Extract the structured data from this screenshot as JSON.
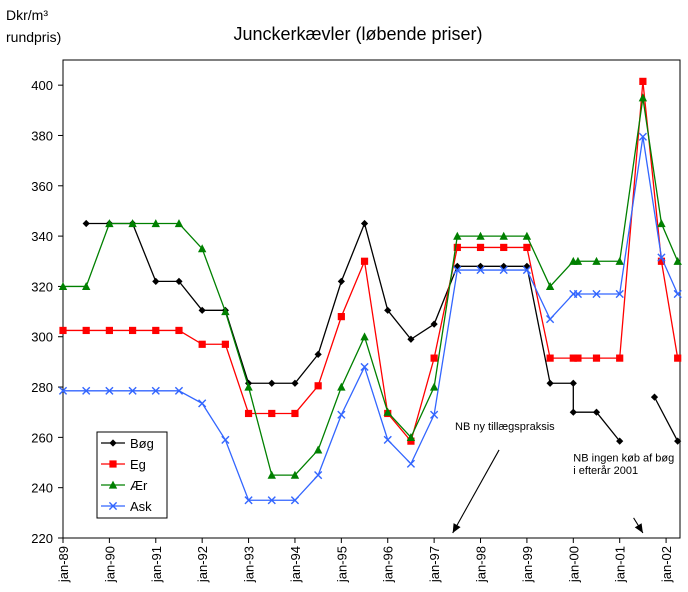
{
  "chart_data": {
    "type": "line",
    "title": "Junckerkævler (løbende priser)",
    "ylabel": [
      "Dkr/m³",
      "rundpris)"
    ],
    "xlabel": "",
    "ylim": [
      220,
      410
    ],
    "yticks": [
      220,
      240,
      260,
      280,
      300,
      320,
      340,
      360,
      380,
      400
    ],
    "x_tick_labels": [
      "jan-89",
      "jan-90",
      "jan-91",
      "jan-92",
      "jan-93",
      "jan-94",
      "jan-95",
      "jan-96",
      "jan-97",
      "jan-98",
      "jan-99",
      "jan-00",
      "jan-01",
      "jan-02"
    ],
    "x_range": [
      1989.0,
      2002.3
    ],
    "legend_position": "bottom-left",
    "grid": false,
    "series": [
      {
        "name": "Bøg",
        "color": "#000000",
        "marker": "diamond",
        "points": [
          [
            1989.5,
            345
          ],
          [
            1990.0,
            345
          ],
          [
            1990.5,
            345
          ],
          [
            1991.0,
            322
          ],
          [
            1991.5,
            322
          ],
          [
            1992.0,
            310.5
          ],
          [
            1992.5,
            310.5
          ],
          [
            1993.0,
            281.5
          ],
          [
            1993.5,
            281.5
          ],
          [
            1994.0,
            281.5
          ],
          [
            1994.5,
            293
          ],
          [
            1995.0,
            322
          ],
          [
            1995.5,
            345
          ],
          [
            1996.0,
            310.5
          ],
          [
            1996.5,
            299
          ],
          [
            1997.0,
            305
          ],
          [
            1997.5,
            328
          ],
          [
            1998.0,
            328
          ],
          [
            1998.5,
            328
          ],
          [
            1999.0,
            328
          ],
          [
            1999.5,
            281.5
          ],
          [
            2000.0,
            281.5
          ],
          [
            2000.0,
            270
          ],
          [
            2000.5,
            270
          ],
          [
            2001.0,
            258.5
          ],
          null,
          [
            2001.75,
            276
          ],
          [
            2002.25,
            258.5
          ]
        ]
      },
      {
        "name": "Eg",
        "color": "#ff0000",
        "marker": "square",
        "points": [
          [
            1989.0,
            302.5
          ],
          [
            1989.5,
            302.5
          ],
          [
            1990.0,
            302.5
          ],
          [
            1990.5,
            302.5
          ],
          [
            1991.0,
            302.5
          ],
          [
            1991.5,
            302.5
          ],
          [
            1992.0,
            297
          ],
          [
            1992.5,
            297
          ],
          [
            1993.0,
            269.5
          ],
          [
            1993.5,
            269.5
          ],
          [
            1994.0,
            269.5
          ],
          [
            1994.5,
            280.5
          ],
          [
            1995.0,
            308
          ],
          [
            1995.5,
            330
          ],
          [
            1996.0,
            269.5
          ],
          [
            1996.5,
            258.5
          ],
          [
            1997.0,
            291.5
          ],
          [
            1997.5,
            335.5
          ],
          [
            1998.0,
            335.5
          ],
          [
            1998.5,
            335.5
          ],
          [
            1999.0,
            335.5
          ],
          [
            1999.5,
            291.5
          ],
          [
            2000.0,
            291.5
          ],
          [
            2000.1,
            291.5
          ],
          [
            2000.5,
            291.5
          ],
          [
            2001.0,
            291.5
          ],
          [
            2001.5,
            401.5
          ],
          [
            2001.9,
            330
          ],
          [
            2002.25,
            291.5
          ]
        ]
      },
      {
        "name": "Ær",
        "color": "#008000",
        "marker": "triangle",
        "points": [
          [
            1989.0,
            320
          ],
          [
            1989.5,
            320
          ],
          [
            1990.0,
            345
          ],
          [
            1990.5,
            345
          ],
          [
            1991.0,
            345
          ],
          [
            1991.5,
            345
          ],
          [
            1992.0,
            335
          ],
          [
            1992.5,
            310
          ],
          [
            1993.0,
            280
          ],
          [
            1993.5,
            245
          ],
          [
            1994.0,
            245
          ],
          [
            1994.5,
            255
          ],
          [
            1995.0,
            280
          ],
          [
            1995.5,
            300
          ],
          [
            1996.0,
            270
          ],
          [
            1996.5,
            260
          ],
          [
            1997.0,
            280
          ],
          [
            1997.5,
            340
          ],
          [
            1998.0,
            340
          ],
          [
            1998.5,
            340
          ],
          [
            1999.0,
            340
          ],
          [
            1999.5,
            320
          ],
          [
            2000.0,
            330
          ],
          [
            2000.1,
            330
          ],
          [
            2000.5,
            330
          ],
          [
            2001.0,
            330
          ],
          [
            2001.5,
            395
          ],
          [
            2001.9,
            345
          ],
          [
            2002.25,
            330
          ]
        ]
      },
      {
        "name": "Ask",
        "color": "#3366ff",
        "marker": "x",
        "points": [
          [
            1989.0,
            278.5
          ],
          [
            1989.5,
            278.5
          ],
          [
            1990.0,
            278.5
          ],
          [
            1990.5,
            278.5
          ],
          [
            1991.0,
            278.5
          ],
          [
            1991.5,
            278.5
          ],
          [
            1992.0,
            273.5
          ],
          [
            1992.5,
            259
          ],
          [
            1993.0,
            235
          ],
          [
            1993.5,
            235
          ],
          [
            1994.0,
            235
          ],
          [
            1994.5,
            245
          ],
          [
            1995.0,
            269
          ],
          [
            1995.5,
            288
          ],
          [
            1996.0,
            259
          ],
          [
            1996.5,
            249.5
          ],
          [
            1997.0,
            269
          ],
          [
            1997.5,
            326.5
          ],
          [
            1998.0,
            326.5
          ],
          [
            1998.5,
            326.5
          ],
          [
            1999.0,
            326.5
          ],
          [
            1999.5,
            307
          ],
          [
            2000.0,
            317
          ],
          [
            2000.1,
            317
          ],
          [
            2000.5,
            317
          ],
          [
            2001.0,
            317
          ],
          [
            2001.5,
            379.5
          ],
          [
            2001.9,
            331.5
          ],
          [
            2002.25,
            317
          ]
        ]
      }
    ],
    "annotations": [
      {
        "text": "NB ny tillægspraksis",
        "at": [
          1997.45,
          263
        ],
        "arrow_from": [
          1998.4,
          255
        ],
        "arrow_to": [
          1997.4,
          222
        ]
      },
      {
        "text": "NB ingen køb af bøg",
        "at": [
          2000.0,
          250.5
        ],
        "arrow_from": [
          2001.3,
          228
        ],
        "arrow_to": [
          2001.5,
          222
        ]
      },
      {
        "text": "i efterår 2001",
        "at": [
          2000.0,
          245.5
        ]
      }
    ]
  }
}
